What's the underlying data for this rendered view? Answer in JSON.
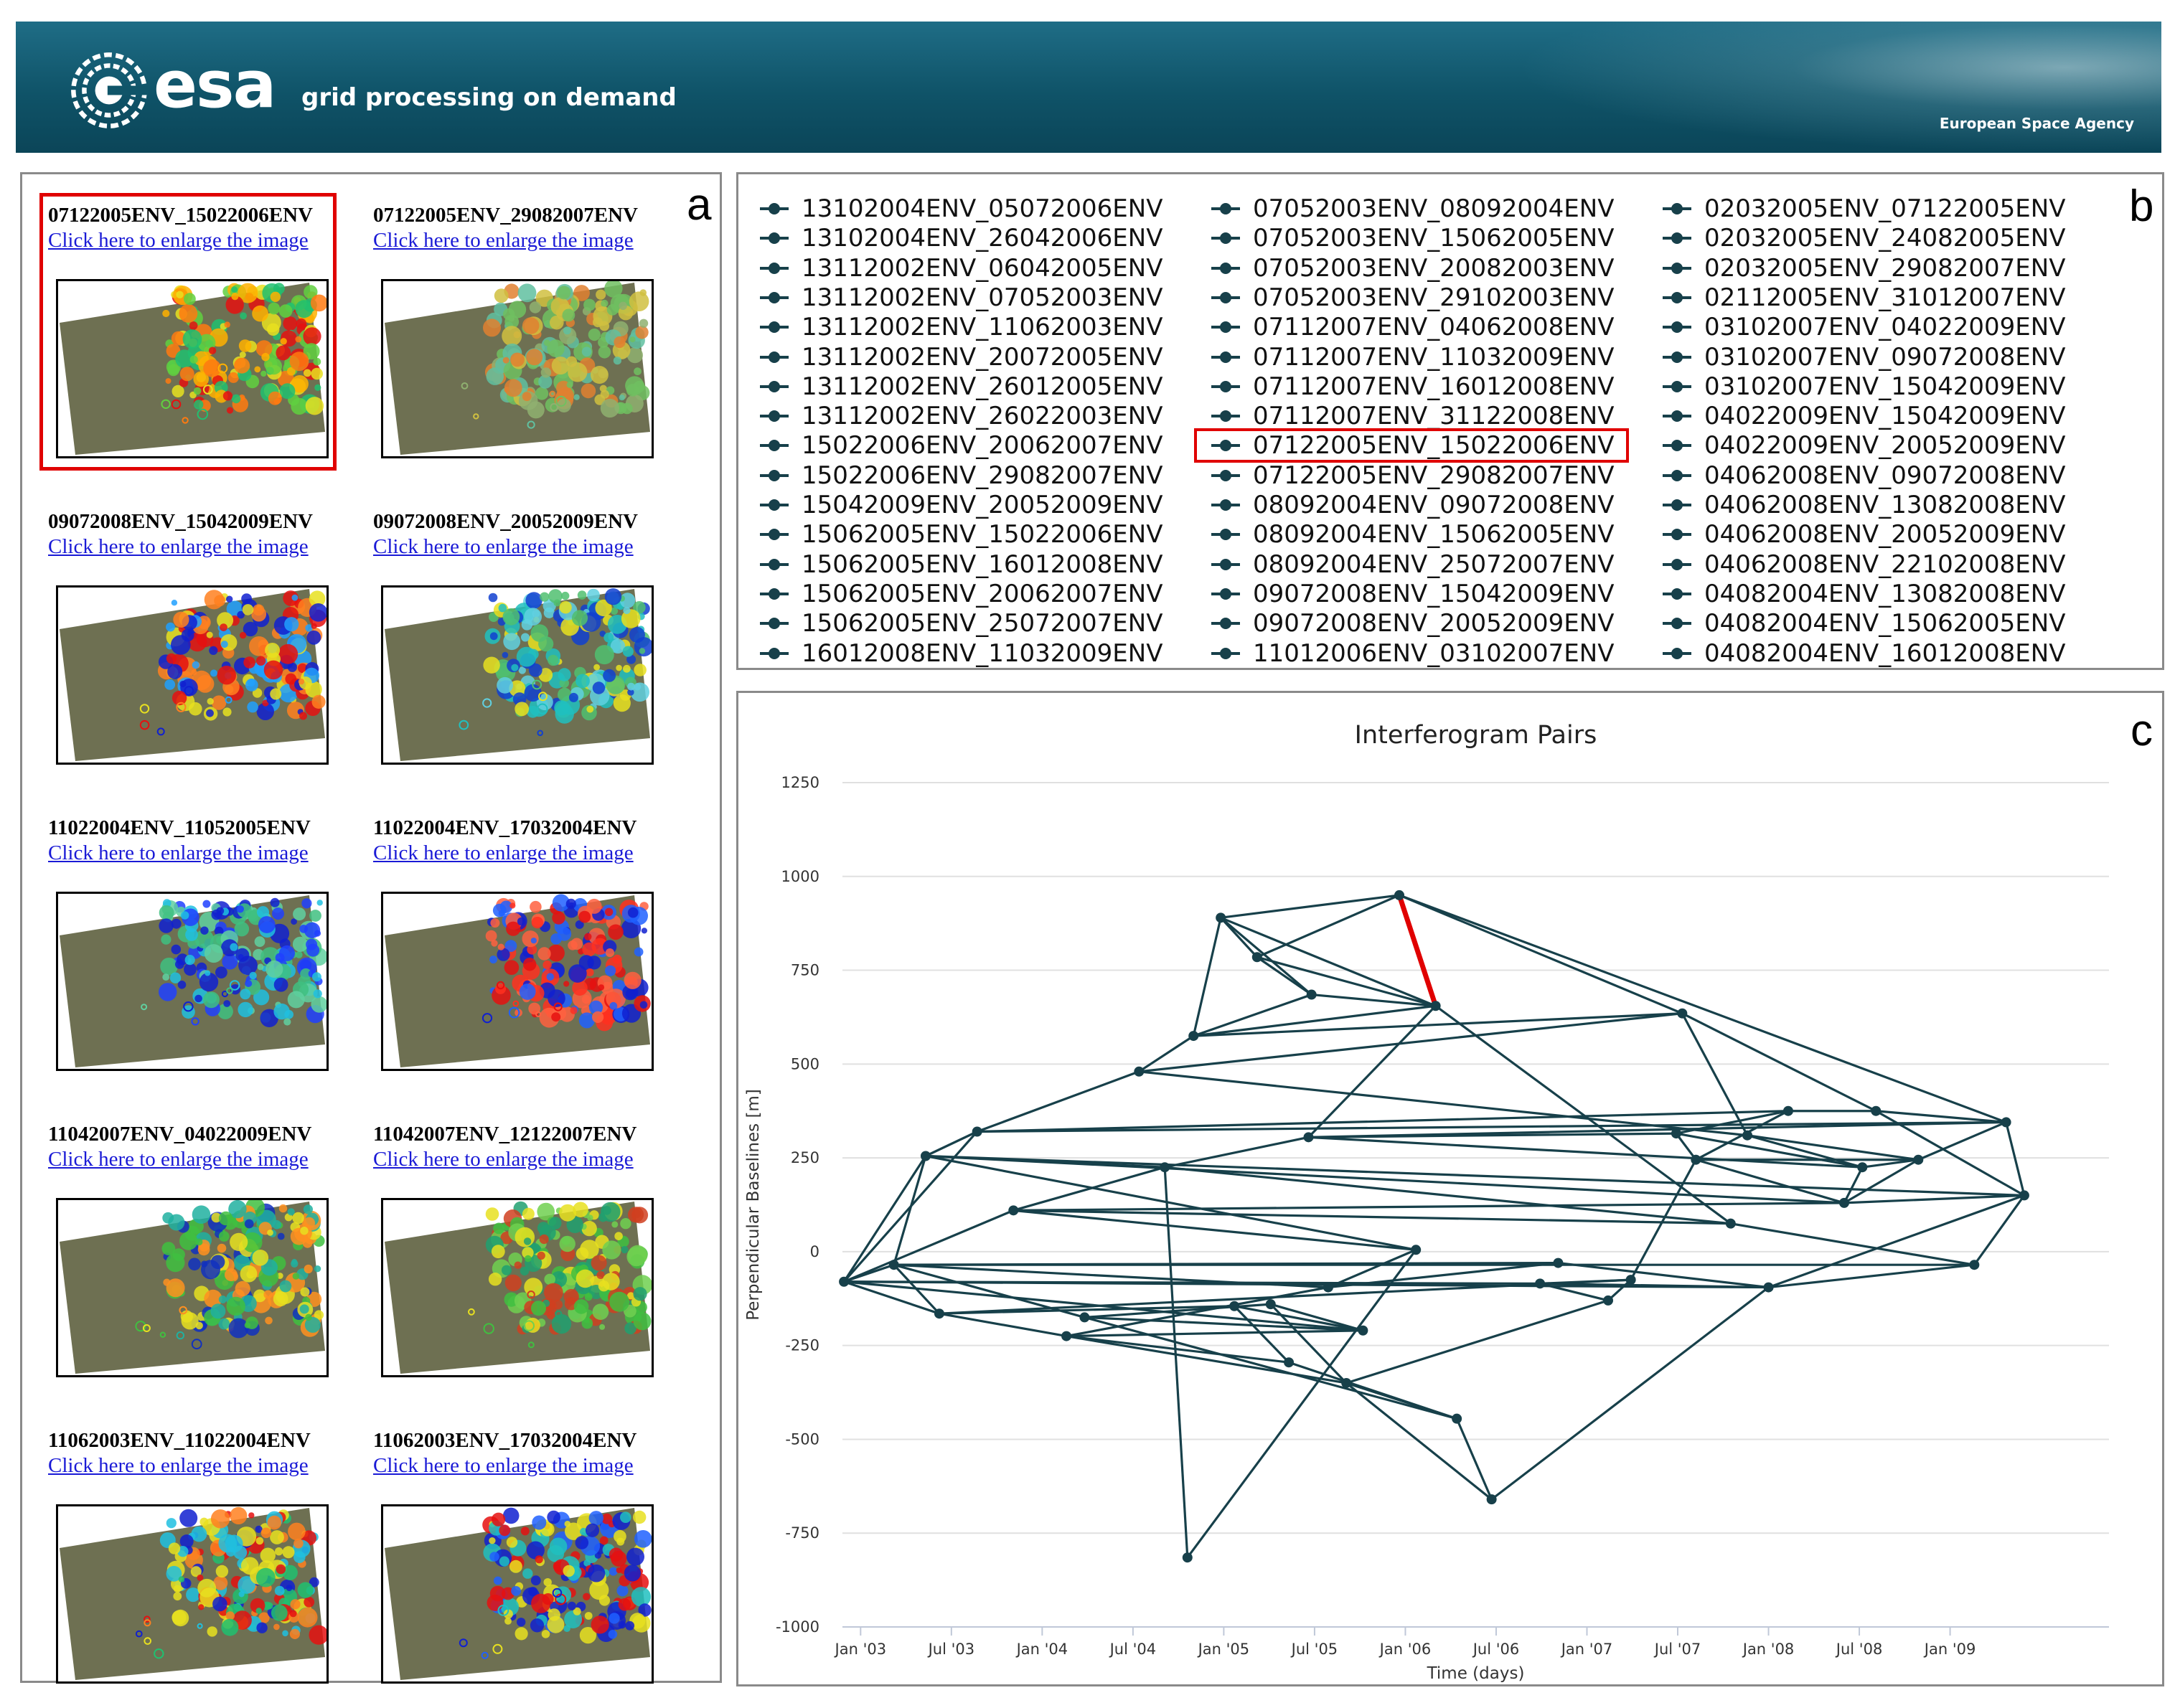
{
  "header": {
    "logo_text": "esa",
    "tagline": "grid processing on demand",
    "agency": "European Space Agency"
  },
  "panel_letters": {
    "a": "a",
    "b": "b",
    "c": "c"
  },
  "thumbnails": [
    {
      "title": "07122005ENV_15022006ENV",
      "link": "Click here to enlarge the image",
      "highlighted": true,
      "scheme": "mixed"
    },
    {
      "title": "07122005ENV_29082007ENV",
      "link": "Click here to enlarge the image",
      "highlighted": false,
      "scheme": "faint"
    },
    {
      "title": "09072008ENV_15042009ENV",
      "link": "Click here to enlarge the image",
      "highlighted": false,
      "scheme": "blue-red"
    },
    {
      "title": "09072008ENV_20052009ENV",
      "link": "Click here to enlarge the image",
      "highlighted": false,
      "scheme": "cyan"
    },
    {
      "title": "11022004ENV_11052005ENV",
      "link": "Click here to enlarge the image",
      "highlighted": false,
      "scheme": "blue-cyan"
    },
    {
      "title": "11022004ENV_17032004ENV",
      "link": "Click here to enlarge the image",
      "highlighted": false,
      "scheme": "red-blue"
    },
    {
      "title": "11042007ENV_04022009ENV",
      "link": "Click here to enlarge the image",
      "highlighted": false,
      "scheme": "green-yellow"
    },
    {
      "title": "11042007ENV_12122007ENV",
      "link": "Click here to enlarge the image",
      "highlighted": false,
      "scheme": "green"
    },
    {
      "title": "11062003ENV_11022004ENV",
      "link": "Click here to enlarge the image",
      "highlighted": false,
      "scheme": "rainbow"
    },
    {
      "title": "11062003ENV_17032004ENV",
      "link": "Click here to enlarge the image",
      "highlighted": false,
      "scheme": "blue-rainbow"
    }
  ],
  "legend": {
    "columns": [
      [
        "13102004ENV_05072006ENV",
        "13102004ENV_26042006ENV",
        "13112002ENV_06042005ENV",
        "13112002ENV_07052003ENV",
        "13112002ENV_11062003ENV",
        "13112002ENV_20072005ENV",
        "13112002ENV_26012005ENV",
        "13112002ENV_26022003ENV",
        "15022006ENV_20062007ENV",
        "15022006ENV_29082007ENV",
        "15042009ENV_20052009ENV",
        "15062005ENV_15022006ENV",
        "15062005ENV_16012008ENV",
        "15062005ENV_20062007ENV",
        "15062005ENV_25072007ENV",
        "16012008ENV_11032009ENV"
      ],
      [
        "07052003ENV_08092004ENV",
        "07052003ENV_15062005ENV",
        "07052003ENV_20082003ENV",
        "07052003ENV_29102003ENV",
        "07112007ENV_04062008ENV",
        "07112007ENV_11032009ENV",
        "07112007ENV_16012008ENV",
        "07112007ENV_31122008ENV",
        "07122005ENV_15022006ENV",
        "07122005ENV_29082007ENV",
        "08092004ENV_09072008ENV",
        "08092004ENV_15062005ENV",
        "08092004ENV_25072007ENV",
        "09072008ENV_15042009ENV",
        "09072008ENV_20052009ENV",
        "11012006ENV_03102007ENV"
      ],
      [
        "02032005ENV_07122005ENV",
        "02032005ENV_24082005ENV",
        "02032005ENV_29082007ENV",
        "02112005ENV_31012007ENV",
        "03102007ENV_04022009ENV",
        "03102007ENV_09072008ENV",
        "03102007ENV_15042009ENV",
        "04022009ENV_15042009ENV",
        "04022009ENV_20052009ENV",
        "04062008ENV_09072008ENV",
        "04062008ENV_13082008ENV",
        "04062008ENV_20052009ENV",
        "04062008ENV_22102008ENV",
        "04082004ENV_13082008ENV",
        "04082004ENV_15062005ENV",
        "04082004ENV_16012008ENV"
      ]
    ],
    "highlighted": "07122005ENV_15022006ENV",
    "marker_color": "#17404a"
  },
  "chart_data": {
    "type": "line",
    "title": "Interferogram Pairs",
    "xlabel": "Time (days)",
    "ylabel": "Perpendicular Baselines [m]",
    "x_ticks": [
      "Jan '03",
      "Jul '03",
      "Jan '04",
      "Jul '04",
      "Jan '05",
      "Jul '05",
      "Jan '06",
      "Jul '06",
      "Jan '07",
      "Jul '07",
      "Jan '08",
      "Jul '08",
      "Jan '09"
    ],
    "y_ticks": [
      1250,
      1000,
      750,
      500,
      250,
      0,
      -250,
      -500,
      -750,
      -1000
    ],
    "ylim": [
      -1000,
      1250
    ],
    "xlim_months": [
      -1.2,
      82.5
    ],
    "grid": "horizontal",
    "line_color": "#17404a",
    "highlight_color": "#e00000",
    "nodes": [
      {
        "t": -1.1,
        "b": -80
      },
      {
        "t": 2.2,
        "b": -35
      },
      {
        "t": 4.3,
        "b": 255
      },
      {
        "t": 5.2,
        "b": -165
      },
      {
        "t": 7.7,
        "b": 320
      },
      {
        "t": 10.1,
        "b": 110
      },
      {
        "t": 13.6,
        "b": -225
      },
      {
        "t": 14.8,
        "b": -175
      },
      {
        "t": 18.4,
        "b": 480
      },
      {
        "t": 20.1,
        "b": 225
      },
      {
        "t": 21.6,
        "b": -815
      },
      {
        "t": 22.0,
        "b": 575
      },
      {
        "t": 23.8,
        "b": 890
      },
      {
        "t": 24.7,
        "b": -145
      },
      {
        "t": 26.2,
        "b": 785
      },
      {
        "t": 27.1,
        "b": -140
      },
      {
        "t": 28.3,
        "b": -295
      },
      {
        "t": 29.6,
        "b": 305
      },
      {
        "t": 29.8,
        "b": 685
      },
      {
        "t": 30.9,
        "b": -95
      },
      {
        "t": 32.1,
        "b": -350
      },
      {
        "t": 33.2,
        "b": -210
      },
      {
        "t": 35.6,
        "b": 950
      },
      {
        "t": 36.7,
        "b": 5
      },
      {
        "t": 38.0,
        "b": 655
      },
      {
        "t": 39.4,
        "b": -445
      },
      {
        "t": 41.7,
        "b": -660
      },
      {
        "t": 44.9,
        "b": -85
      },
      {
        "t": 46.1,
        "b": -30
      },
      {
        "t": 49.4,
        "b": -130
      },
      {
        "t": 50.9,
        "b": -75
      },
      {
        "t": 53.9,
        "b": 315
      },
      {
        "t": 54.3,
        "b": 635
      },
      {
        "t": 55.2,
        "b": 245
      },
      {
        "t": 57.5,
        "b": 75
      },
      {
        "t": 58.6,
        "b": 310
      },
      {
        "t": 60.0,
        "b": -95
      },
      {
        "t": 61.3,
        "b": 375
      },
      {
        "t": 65.0,
        "b": 130
      },
      {
        "t": 66.2,
        "b": 225
      },
      {
        "t": 67.1,
        "b": 375
      },
      {
        "t": 69.9,
        "b": 245
      },
      {
        "t": 73.6,
        "b": -35
      },
      {
        "t": 75.7,
        "b": 345
      },
      {
        "t": 76.9,
        "b": 150
      }
    ],
    "edges": [
      [
        0,
        1
      ],
      [
        0,
        2
      ],
      [
        0,
        3
      ],
      [
        0,
        4
      ],
      [
        0,
        5
      ],
      [
        0,
        36
      ],
      [
        0,
        27
      ],
      [
        0,
        21
      ],
      [
        1,
        2
      ],
      [
        1,
        3
      ],
      [
        1,
        42
      ],
      [
        1,
        7
      ],
      [
        1,
        28
      ],
      [
        1,
        19
      ],
      [
        2,
        4
      ],
      [
        2,
        38
      ],
      [
        2,
        44
      ],
      [
        2,
        9
      ],
      [
        2,
        23
      ],
      [
        3,
        6
      ],
      [
        3,
        13
      ],
      [
        3,
        30
      ],
      [
        4,
        8
      ],
      [
        4,
        37
      ],
      [
        4,
        43
      ],
      [
        5,
        9
      ],
      [
        5,
        23
      ],
      [
        5,
        38
      ],
      [
        6,
        21
      ],
      [
        6,
        16
      ],
      [
        6,
        20
      ],
      [
        6,
        19
      ],
      [
        7,
        15
      ],
      [
        7,
        21
      ],
      [
        7,
        25
      ],
      [
        8,
        11
      ],
      [
        8,
        32
      ],
      [
        8,
        35
      ],
      [
        9,
        17
      ],
      [
        9,
        10
      ],
      [
        9,
        34
      ],
      [
        10,
        23
      ],
      [
        11,
        12
      ],
      [
        11,
        18
      ],
      [
        11,
        24
      ],
      [
        11,
        32
      ],
      [
        12,
        14
      ],
      [
        12,
        22
      ],
      [
        12,
        18
      ],
      [
        12,
        24
      ],
      [
        13,
        16
      ],
      [
        13,
        21
      ],
      [
        14,
        22
      ],
      [
        14,
        24
      ],
      [
        14,
        18
      ],
      [
        15,
        21
      ],
      [
        15,
        20
      ],
      [
        16,
        25
      ],
      [
        17,
        31
      ],
      [
        17,
        39
      ],
      [
        17,
        43
      ],
      [
        18,
        24
      ],
      [
        19,
        28
      ],
      [
        19,
        23
      ],
      [
        20,
        26
      ],
      [
        20,
        29
      ],
      [
        20,
        25
      ],
      [
        22,
        24
      ],
      [
        22,
        32
      ],
      [
        22,
        43
      ],
      [
        24,
        34
      ],
      [
        24,
        17
      ],
      [
        25,
        26
      ],
      [
        26,
        36
      ],
      [
        27,
        29
      ],
      [
        27,
        30
      ],
      [
        27,
        36
      ],
      [
        28,
        36
      ],
      [
        29,
        30
      ],
      [
        30,
        33
      ],
      [
        31,
        33
      ],
      [
        31,
        39
      ],
      [
        31,
        37
      ],
      [
        32,
        40
      ],
      [
        32,
        35
      ],
      [
        33,
        38
      ],
      [
        33,
        41
      ],
      [
        34,
        42
      ],
      [
        35,
        39
      ],
      [
        35,
        41
      ],
      [
        36,
        42
      ],
      [
        36,
        44
      ],
      [
        37,
        40
      ],
      [
        38,
        44
      ],
      [
        38,
        41
      ],
      [
        39,
        41
      ],
      [
        40,
        44
      ],
      [
        40,
        43
      ],
      [
        41,
        43
      ],
      [
        42,
        44
      ],
      [
        43,
        44
      ],
      [
        37,
        33
      ],
      [
        39,
        38
      ],
      [
        5,
        34
      ]
    ],
    "highlighted_edge": [
      22,
      24
    ]
  }
}
